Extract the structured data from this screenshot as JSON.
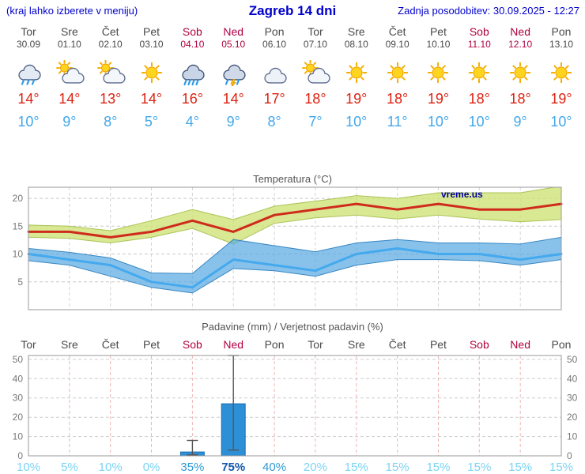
{
  "header": {
    "left_note": "(kraj lahko izberete v meniju)",
    "title": "Zagreb 14 dni",
    "updated": "Zadnja posodobitev: 30.09.2025 - 12:27"
  },
  "colors": {
    "header_blue": "#0000cc",
    "weekend_red": "#b00040",
    "weekday_gray": "#4a4a4a",
    "tmax_red": "#dd2211",
    "tmin_blue": "#42a7ec"
  },
  "days": [
    {
      "name": "Tor",
      "date": "30.09",
      "weekend": false,
      "icon": "rain",
      "tmax": "14°",
      "tmin": "10°"
    },
    {
      "name": "Sre",
      "date": "01.10",
      "weekend": false,
      "icon": "sun-cloud",
      "tmax": "14°",
      "tmin": "9°"
    },
    {
      "name": "Čet",
      "date": "02.10",
      "weekend": false,
      "icon": "sun-cloud",
      "tmax": "13°",
      "tmin": "8°"
    },
    {
      "name": "Pet",
      "date": "03.10",
      "weekend": false,
      "icon": "sun",
      "tmax": "14°",
      "tmin": "5°"
    },
    {
      "name": "Sob",
      "date": "04.10",
      "weekend": true,
      "icon": "heavy-rain",
      "tmax": "16°",
      "tmin": "4°"
    },
    {
      "name": "Ned",
      "date": "05.10",
      "weekend": true,
      "icon": "thunder-rain",
      "tmax": "14°",
      "tmin": "9°"
    },
    {
      "name": "Pon",
      "date": "06.10",
      "weekend": false,
      "icon": "cloud",
      "tmax": "17°",
      "tmin": "8°"
    },
    {
      "name": "Tor",
      "date": "07.10",
      "weekend": false,
      "icon": "sun-cloud",
      "tmax": "18°",
      "tmin": "7°"
    },
    {
      "name": "Sre",
      "date": "08.10",
      "weekend": false,
      "icon": "sun",
      "tmax": "19°",
      "tmin": "10°"
    },
    {
      "name": "Čet",
      "date": "09.10",
      "weekend": false,
      "icon": "sun",
      "tmax": "18°",
      "tmin": "11°"
    },
    {
      "name": "Pet",
      "date": "10.10",
      "weekend": false,
      "icon": "sun",
      "tmax": "19°",
      "tmin": "10°"
    },
    {
      "name": "Sob",
      "date": "11.10",
      "weekend": true,
      "icon": "sun",
      "tmax": "18°",
      "tmin": "10°"
    },
    {
      "name": "Ned",
      "date": "12.10",
      "weekend": true,
      "icon": "sun",
      "tmax": "18°",
      "tmin": "9°"
    },
    {
      "name": "Pon",
      "date": "13.10",
      "weekend": false,
      "icon": "sun",
      "tmax": "19°",
      "tmin": "10°"
    }
  ],
  "chart_data": [
    {
      "type": "line",
      "title": "Temperatura (°C)",
      "watermark": "vreme.us",
      "categories": [
        "Tor 30.09",
        "Sre 01.10",
        "Čet 02.10",
        "Pet 03.10",
        "Sob 04.10",
        "Ned 05.10",
        "Pon 06.10",
        "Tor 07.10",
        "Sre 08.10",
        "Čet 09.10",
        "Pet 10.10",
        "Sob 11.10",
        "Ned 12.10",
        "Pon 13.10"
      ],
      "ylim": [
        0,
        22
      ],
      "yticks": [
        5,
        10,
        15,
        20
      ],
      "grid": true,
      "series": [
        {
          "name": "max-temperature",
          "color": "#cf2b1c",
          "values": [
            14,
            14,
            13,
            14,
            16,
            14,
            17,
            18,
            19,
            18,
            19,
            18,
            18,
            19
          ]
        },
        {
          "name": "min-temperature",
          "color": "#45a9ee",
          "values": [
            10,
            9,
            8,
            5,
            4,
            9,
            8,
            7,
            10,
            11,
            10,
            10,
            9,
            10
          ]
        }
      ],
      "bands": [
        {
          "name": "max-range",
          "fill": "rgba(208,226,120,0.8)",
          "edge": "rgba(165,190,75,0.9)",
          "upper": [
            15.2,
            15,
            14.2,
            16,
            18,
            16.2,
            18.6,
            19.5,
            20.5,
            20,
            21,
            21,
            21,
            22.2
          ],
          "lower": [
            13,
            12.8,
            12,
            13,
            14.6,
            11.8,
            15.5,
            16.5,
            17,
            16.3,
            17,
            16.3,
            15.8,
            16.2
          ]
        },
        {
          "name": "min-range",
          "fill": "rgba(86,168,226,0.7)",
          "edge": "rgba(40,125,190,0.9)",
          "upper": [
            11,
            10.3,
            9.3,
            6.6,
            6.5,
            12.6,
            11.5,
            10.4,
            12,
            12.6,
            12,
            12,
            11.8,
            13
          ],
          "lower": [
            8.8,
            8,
            6,
            4,
            3,
            7.4,
            7,
            6,
            8,
            9,
            9,
            8.8,
            8,
            9
          ]
        }
      ]
    },
    {
      "type": "bar",
      "title": "Padavine (mm) / Verjetnost padavin (%)",
      "categories": [
        "Tor",
        "Sre",
        "Čet",
        "Pet",
        "Sob",
        "Ned",
        "Pon",
        "Tor",
        "Sre",
        "Čet",
        "Pet",
        "Sob",
        "Ned",
        "Pon"
      ],
      "values": [
        0,
        0,
        0,
        0,
        2,
        27,
        0,
        0,
        0,
        0,
        0,
        0,
        0,
        0
      ],
      "whiskers": [
        null,
        null,
        null,
        null,
        [
          0.5,
          8
        ],
        [
          3,
          52
        ],
        null,
        null,
        null,
        null,
        null,
        null,
        null,
        null
      ],
      "probabilities": [
        "10%",
        "5%",
        "10%",
        "0%",
        "35%",
        "75%",
        "40%",
        "20%",
        "15%",
        "15%",
        "15%",
        "15%",
        "15%",
        "15%"
      ],
      "prob_values": [
        10,
        5,
        10,
        0,
        35,
        75,
        40,
        20,
        15,
        15,
        15,
        15,
        15,
        15
      ],
      "prob_colors": {
        "low": "#7cd4f2",
        "mid": "#2f99d4",
        "high": "#1457ae"
      },
      "ylim": [
        0,
        52
      ],
      "yticks": [
        0,
        10,
        20,
        30,
        40,
        50
      ],
      "grid": true,
      "bar_color": "#2d8fd5",
      "bar_edge": "#1b6db2"
    }
  ]
}
